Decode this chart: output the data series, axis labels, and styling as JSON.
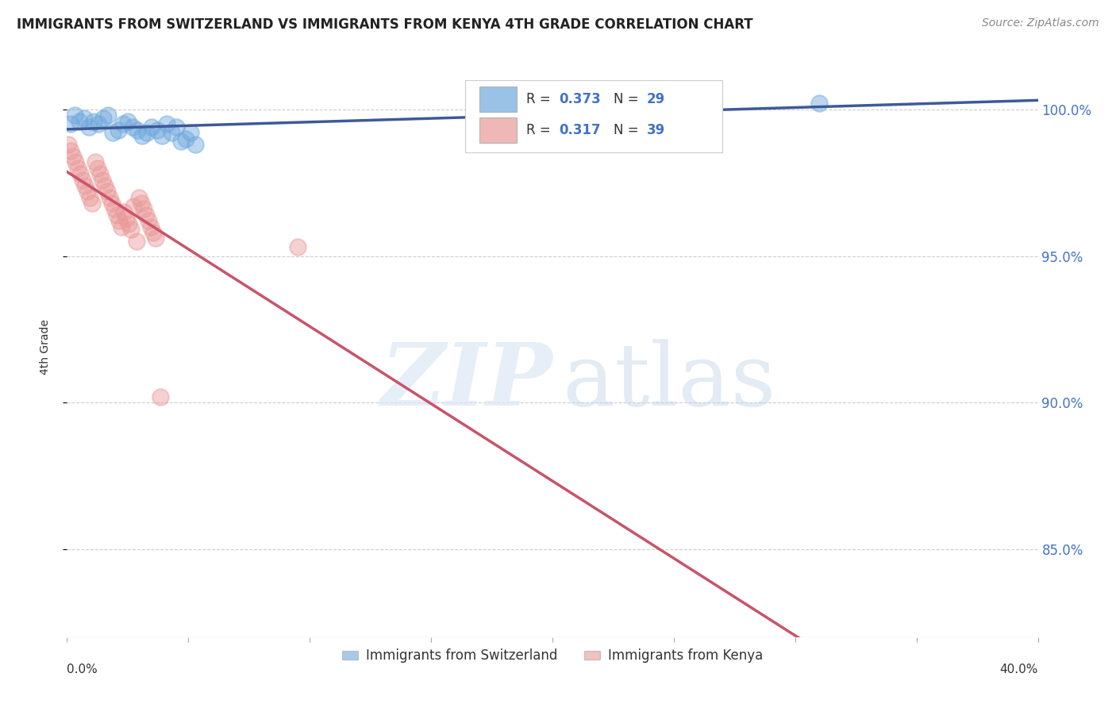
{
  "title": "IMMIGRANTS FROM SWITZERLAND VS IMMIGRANTS FROM KENYA 4TH GRADE CORRELATION CHART",
  "source": "Source: ZipAtlas.com",
  "ylabel": "4th Grade",
  "xlim": [
    0.0,
    40.0
  ],
  "ylim": [
    82.0,
    101.8
  ],
  "y_ticks": [
    85.0,
    90.0,
    95.0,
    100.0
  ],
  "y_tick_labels": [
    "85.0%",
    "90.0%",
    "95.0%",
    "100.0%"
  ],
  "legend_r_swiss": "0.373",
  "legend_n_swiss": "29",
  "legend_r_kenya": "0.317",
  "legend_n_kenya": "39",
  "swiss_color": "#6fa8dc",
  "kenya_color": "#ea9999",
  "swiss_line_color": "#3d5a99",
  "kenya_line_color": "#c9536a",
  "swiss_scatter_x": [
    0.15,
    0.3,
    0.5,
    0.7,
    0.9,
    1.1,
    1.3,
    1.5,
    1.7,
    1.9,
    2.1,
    2.3,
    2.5,
    2.7,
    2.9,
    3.1,
    3.3,
    3.5,
    3.7,
    3.9,
    4.1,
    4.3,
    4.5,
    4.7,
    4.9,
    5.1,
    5.3,
    18.5,
    31.0
  ],
  "swiss_scatter_y": [
    99.5,
    99.8,
    99.6,
    99.7,
    99.4,
    99.6,
    99.5,
    99.7,
    99.8,
    99.2,
    99.3,
    99.5,
    99.6,
    99.4,
    99.3,
    99.1,
    99.2,
    99.4,
    99.3,
    99.1,
    99.5,
    99.2,
    99.4,
    98.9,
    99.0,
    99.2,
    98.8,
    100.2,
    100.2
  ],
  "kenya_scatter_x": [
    0.05,
    0.15,
    0.25,
    0.35,
    0.45,
    0.55,
    0.65,
    0.75,
    0.85,
    0.95,
    1.05,
    1.15,
    1.25,
    1.35,
    1.45,
    1.55,
    1.65,
    1.75,
    1.85,
    1.95,
    2.05,
    2.15,
    2.25,
    2.35,
    2.45,
    2.55,
    2.65,
    2.75,
    2.85,
    2.95,
    3.05,
    3.15,
    3.25,
    3.35,
    3.45,
    3.55,
    3.65,
    9.5,
    3.85
  ],
  "kenya_scatter_y": [
    98.8,
    98.6,
    98.4,
    98.2,
    98.0,
    97.8,
    97.6,
    97.4,
    97.2,
    97.0,
    96.8,
    98.2,
    98.0,
    97.8,
    97.6,
    97.4,
    97.2,
    97.0,
    96.8,
    96.6,
    96.4,
    96.2,
    96.0,
    96.5,
    96.3,
    96.1,
    95.9,
    96.7,
    95.5,
    97.0,
    96.8,
    96.6,
    96.4,
    96.2,
    96.0,
    95.8,
    95.6,
    95.3,
    90.2
  ]
}
